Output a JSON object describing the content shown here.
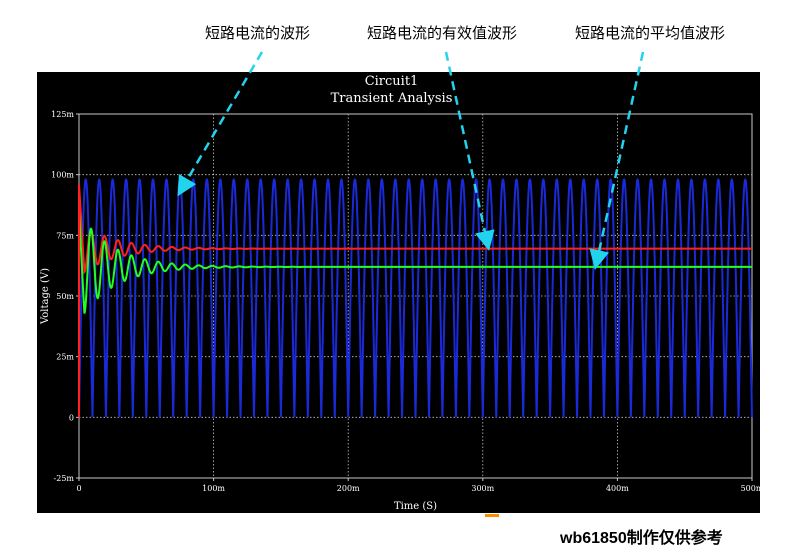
{
  "annotations": {
    "waveform": "短路电流的波形",
    "rms": "短路电流的有效值波形",
    "average": "短路电流的平均值波形"
  },
  "watermark": "wb61850制作仅供参考",
  "colors": {
    "background": "#000000",
    "grid": "#c8c8c8",
    "text": "#ffffff",
    "waveform": "#1a2ad8",
    "rms": "#ff2020",
    "average": "#22ff22",
    "arrow": "#22d3ee"
  },
  "chart_data": {
    "type": "line",
    "title": "Circuit1",
    "subtitle": "Transient Analysis",
    "xlabel": "Time (S)",
    "ylabel": "Voltage (V)",
    "xlim": [
      0,
      0.5
    ],
    "ylim": [
      -0.025,
      0.125
    ],
    "x_ticks": [
      0,
      0.1,
      0.2,
      0.3,
      0.4,
      0.5
    ],
    "x_tick_labels": [
      "0",
      "100m",
      "200m",
      "300m",
      "400m",
      "500m"
    ],
    "y_ticks": [
      -0.025,
      0,
      0.025,
      0.05,
      0.075,
      0.1,
      0.125
    ],
    "y_tick_labels": [
      "-25m",
      "0",
      "25m",
      "50m",
      "75m",
      "100m",
      "125m"
    ],
    "grid": true,
    "series": [
      {
        "key": "waveform",
        "description": "rectified sinusoid, 100 Hz",
        "frequency_hz": 100,
        "peak": 0.098,
        "trough": 0.0
      },
      {
        "key": "rms",
        "description": "rms value with damped oscillation",
        "start": 0.096,
        "steady": 0.0695,
        "oscillation_amplitude": 0.006,
        "decay_time_constant": 0.025,
        "oscillation_frequency_hz": 100
      },
      {
        "key": "average",
        "description": "average value with damped oscillation",
        "start": 0.085,
        "steady": 0.062,
        "oscillation_amplitude": 0.012,
        "decay_time_constant": 0.025,
        "oscillation_frequency_hz": 100
      }
    ]
  }
}
